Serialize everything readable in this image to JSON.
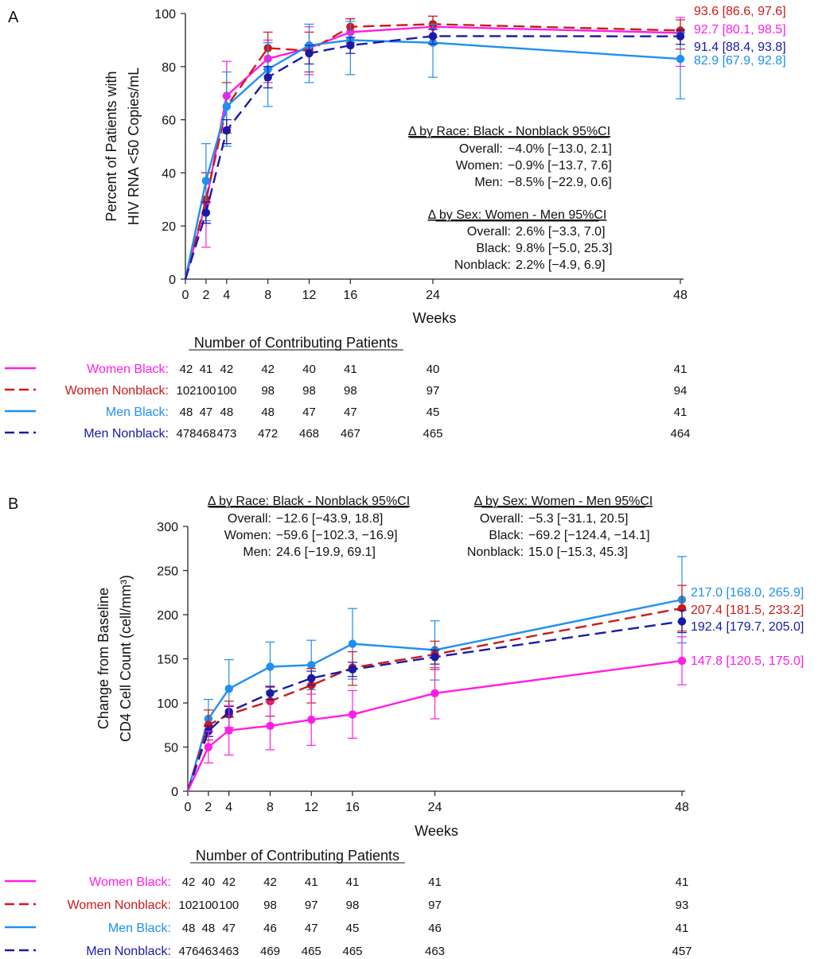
{
  "colors": {
    "women_black": "#ff1ee6",
    "women_nonblack": "#cc1a1a",
    "men_black": "#1e90f0",
    "men_nonblack": "#1a1aa8"
  },
  "chart_data": [
    {
      "panel_label": "A",
      "type": "line",
      "ylabel_lines": [
        "Percent of Patients with",
        "HIV RNA <50 Copies/mL"
      ],
      "xlabel": "Weeks",
      "x": [
        0,
        2,
        4,
        8,
        12,
        16,
        24,
        48
      ],
      "ylim": [
        0,
        100
      ],
      "yticks": [
        0,
        20,
        40,
        60,
        80,
        100
      ],
      "series": [
        {
          "key": "women_black",
          "name": "Women Black",
          "dash": false,
          "y": [
            0,
            29,
            69,
            83,
            87,
            93,
            95,
            92.7
          ],
          "err": [
            [
              0,
              0
            ],
            [
              12,
              40
            ],
            [
              57,
              82
            ],
            [
              74,
              90
            ],
            [
              77,
              95
            ],
            [
              85,
              98
            ],
            [
              89,
              99
            ],
            [
              80.1,
              98.5
            ]
          ],
          "end_label": "92.7 [80.1, 98.5]"
        },
        {
          "key": "women_nonblack",
          "name": "Women Nonblack",
          "dash": true,
          "y": [
            0,
            30,
            65,
            87,
            86,
            95,
            96,
            93.6
          ],
          "err": [
            [
              0,
              0
            ],
            [
              21,
              40
            ],
            [
              55,
              74
            ],
            [
              79,
              93
            ],
            [
              78,
              93
            ],
            [
              89,
              98
            ],
            [
              91,
              99
            ],
            [
              86.6,
              97.6
            ]
          ],
          "end_label": "93.6 [86.6, 97.6]"
        },
        {
          "key": "men_black",
          "name": "Men Black",
          "dash": false,
          "y": [
            0,
            37,
            65,
            79,
            88,
            90,
            89,
            82.9
          ],
          "err": [
            [
              0,
              0
            ],
            [
              22,
              51
            ],
            [
              50,
              78
            ],
            [
              65,
              89
            ],
            [
              74,
              96
            ],
            [
              77,
              97
            ],
            [
              76,
              96
            ],
            [
              67.9,
              92.8
            ]
          ],
          "end_label": "82.9 [67.9, 92.8]"
        },
        {
          "key": "men_nonblack",
          "name": "Men Nonblack",
          "dash": true,
          "y": [
            0,
            25,
            56,
            76,
            85,
            88,
            91.5,
            91.4
          ],
          "err": [
            [
              0,
              0
            ],
            [
              21,
              29
            ],
            [
              51,
              60
            ],
            [
              72,
              80
            ],
            [
              81,
              88
            ],
            [
              85,
              91
            ],
            [
              88.5,
              94
            ],
            [
              88.4,
              93.8
            ]
          ],
          "end_label": "91.4 [88.4, 93.8]"
        }
      ],
      "annotations": {
        "race_title": "Δ by Race: Black - Nonblack 95%CI",
        "race_rows": [
          {
            "label": "Overall:",
            "value": "−4.0%  [−13.0, 2.1]"
          },
          {
            "label": "Women:",
            "value": "−0.9%  [−13.7, 7.6]"
          },
          {
            "label": "Men:",
            "value": "−8.5%  [−22.9, 0.6]"
          }
        ],
        "sex_title": "Δ by Sex: Women - Men 95%CI",
        "sex_rows": [
          {
            "label": "Overall:",
            "value": "2.6% [−3.3,   7.0]"
          },
          {
            "label": "Black:",
            "value": "9.8% [−5.0, 25.3]"
          },
          {
            "label": "Nonblack:",
            "value": "2.2% [−4.9,   6.9]"
          }
        ]
      },
      "table": {
        "title": "Number of Contributing Patients",
        "rows": [
          {
            "key": "women_black",
            "label": "Women Black:",
            "dash": false,
            "counts": [
              "42",
              "41",
              "42",
              "42",
              "40",
              "41",
              "40",
              "41"
            ]
          },
          {
            "key": "women_nonblack",
            "label": "Women Nonblack:",
            "dash": true,
            "counts": [
              "102",
              "100",
              "100",
              "98",
              "98",
              "98",
              "97",
              "94"
            ]
          },
          {
            "key": "men_black",
            "label": "Men Black:",
            "dash": false,
            "counts": [
              "48",
              "47",
              "48",
              "48",
              "47",
              "47",
              "45",
              "41"
            ]
          },
          {
            "key": "men_nonblack",
            "label": "Men Nonblack:",
            "dash": true,
            "counts": [
              "478",
              "468",
              "473",
              "472",
              "468",
              "467",
              "465",
              "464"
            ]
          }
        ]
      }
    },
    {
      "panel_label": "B",
      "type": "line",
      "ylabel_lines": [
        "Change from Baseline",
        "CD4 Cell Count (cell/mm³)"
      ],
      "xlabel": "Weeks",
      "x": [
        0,
        2,
        4,
        8,
        12,
        16,
        24,
        48
      ],
      "ylim": [
        0,
        300
      ],
      "yticks": [
        0,
        50,
        100,
        150,
        200,
        250,
        300
      ],
      "series": [
        {
          "key": "men_black",
          "name": "Men Black",
          "dash": false,
          "y": [
            0,
            82,
            116,
            141,
            143,
            167,
            160,
            217.0
          ],
          "err": [
            [
              0,
              0
            ],
            [
              62,
              104
            ],
            [
              84,
              149
            ],
            [
              113,
              169
            ],
            [
              115,
              171
            ],
            [
              127,
              207
            ],
            [
              126,
              193
            ],
            [
              168.0,
              265.9
            ]
          ],
          "end_label": "217.0 [168.0, 265.9]"
        },
        {
          "key": "women_nonblack",
          "name": "Women Nonblack",
          "dash": true,
          "y": [
            0,
            75,
            87,
            102,
            120,
            140,
            155,
            207.4
          ],
          "err": [
            [
              0,
              0
            ],
            [
              58,
              92
            ],
            [
              72,
              102
            ],
            [
              85,
              119
            ],
            [
              100,
              139
            ],
            [
              120,
              158
            ],
            [
              138,
              170
            ],
            [
              181.5,
              233.2
            ]
          ],
          "end_label": "207.4 [181.5, 233.2]"
        },
        {
          "key": "men_nonblack",
          "name": "Men Nonblack",
          "dash": true,
          "y": [
            0,
            68,
            90,
            111,
            128,
            138,
            152,
            192.4
          ],
          "err": [
            [
              0,
              0
            ],
            [
              62,
              74
            ],
            [
              84,
              96
            ],
            [
              104,
              118
            ],
            [
              120,
              136
            ],
            [
              130,
              146
            ],
            [
              144,
              160
            ],
            [
              179.7,
              205.0
            ]
          ],
          "end_label": "192.4 [179.7, 205.0]"
        },
        {
          "key": "women_black",
          "name": "Women Black",
          "dash": false,
          "y": [
            0,
            50,
            69,
            74,
            81,
            87,
            111,
            147.8
          ],
          "err": [
            [
              0,
              0
            ],
            [
              32,
              68
            ],
            [
              41,
              97
            ],
            [
              47,
              101
            ],
            [
              52,
              110
            ],
            [
              60,
              114
            ],
            [
              82,
              140
            ],
            [
              120.5,
              175.0
            ]
          ],
          "end_label": "147.8 [120.5, 175.0]"
        }
      ],
      "annotations": {
        "race_title": "Δ by Race: Black - Nonblack 95%CI",
        "race_rows": [
          {
            "label": "Overall:",
            "value": "−12.6   [−43.9,   18.8]"
          },
          {
            "label": "Women:",
            "value": "−59.6 [−102.3, −16.9]"
          },
          {
            "label": "Men:",
            "value": "24.6   [−19.9,   69.1]"
          }
        ],
        "sex_title": "Δ by Sex: Women - Men 95%CI",
        "sex_rows": [
          {
            "label": "Overall:",
            "value": "−5.3    [−31.1,   20.5]"
          },
          {
            "label": "Black:",
            "value": "−69.2  [−124.4,  −14.1]"
          },
          {
            "label": "Nonblack:",
            "value": "15.0    [−15.3,   45.3]"
          }
        ]
      },
      "table": {
        "title": "Number of Contributing Patients",
        "rows": [
          {
            "key": "women_black",
            "label": "Women Black:",
            "dash": false,
            "counts": [
              "42",
              "40",
              "42",
              "42",
              "41",
              "41",
              "41",
              "41"
            ]
          },
          {
            "key": "women_nonblack",
            "label": "Women Nonblack:",
            "dash": true,
            "counts": [
              "102",
              "100",
              "100",
              "98",
              "97",
              "98",
              "97",
              "93"
            ]
          },
          {
            "key": "men_black",
            "label": "Men Black:",
            "dash": false,
            "counts": [
              "48",
              "48",
              "47",
              "46",
              "47",
              "45",
              "46",
              "41"
            ]
          },
          {
            "key": "men_nonblack",
            "label": "Men Nonblack:",
            "dash": true,
            "counts": [
              "476",
              "463",
              "463",
              "469",
              "465",
              "465",
              "463",
              "457"
            ]
          }
        ]
      }
    }
  ]
}
